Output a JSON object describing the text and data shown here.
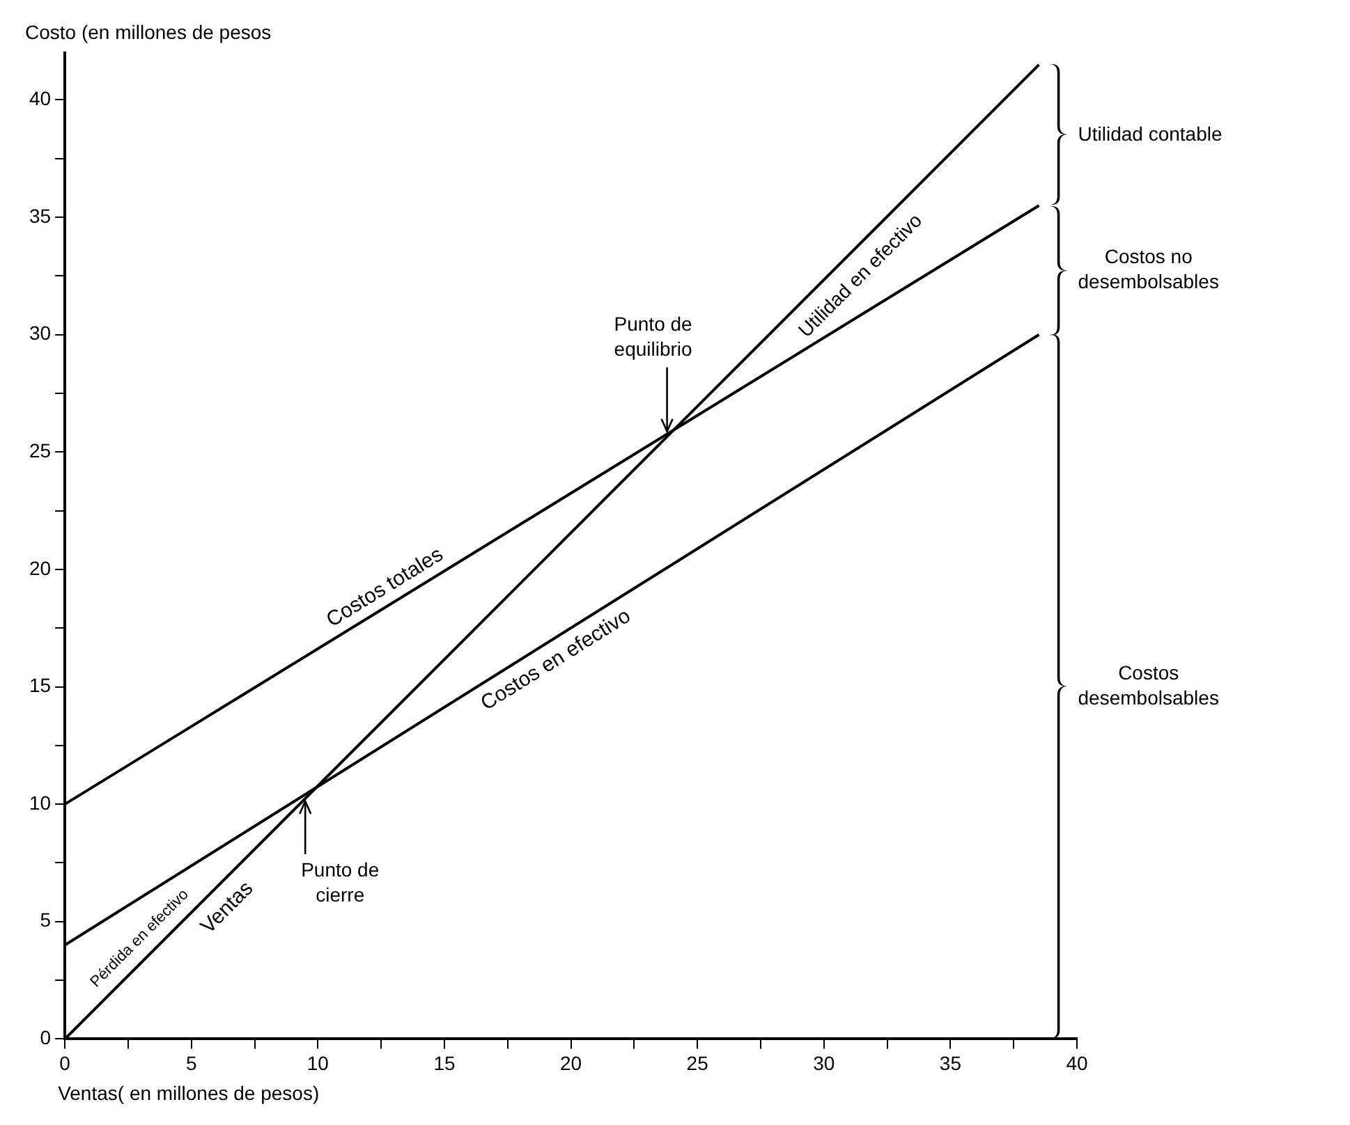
{
  "chart_data": {
    "type": "line",
    "xlabel": "Ventas( en millones de pesos)",
    "ylabel": "Costo (en millones de pesos",
    "x": [
      0,
      38.5
    ],
    "series": [
      {
        "name": "Ventas",
        "color": "#000000",
        "values": [
          0,
          41.5
        ]
      },
      {
        "name": "Costos totales",
        "color": "#000000",
        "values": [
          10,
          35.5
        ]
      },
      {
        "name": "Costos en efectivo",
        "color": "#000000",
        "values": [
          4,
          30
        ]
      }
    ],
    "xlim": [
      0,
      40
    ],
    "ylim": [
      0,
      42
    ],
    "xticks": [
      0,
      {
        "value": 2.5,
        "label": null
      },
      5,
      {
        "value": 7.5,
        "label": null
      },
      10,
      {
        "value": 12.5,
        "label": null
      },
      15,
      {
        "value": 17.5,
        "label": null
      },
      20,
      {
        "value": 22.5,
        "label": null
      },
      25,
      {
        "value": 27.5,
        "label": null
      },
      30,
      {
        "value": 32.5,
        "label": null
      },
      35,
      {
        "value": 37.5,
        "label": null
      },
      40
    ],
    "yticks": [
      0,
      {
        "value": 2.5,
        "label": null
      },
      5,
      {
        "value": 7.5,
        "label": null
      },
      10,
      {
        "value": 12.5,
        "label": null
      },
      15,
      {
        "value": 17.5,
        "label": null
      },
      20,
      {
        "value": 22.5,
        "label": null
      },
      25,
      {
        "value": 27.5,
        "label": null
      },
      30,
      {
        "value": 32.5,
        "label": null
      },
      35,
      {
        "value": 37.5,
        "label": null
      },
      40
    ],
    "annotations": [
      {
        "text": "Punto de equilibrio",
        "x": 23.8,
        "y": 25.7
      },
      {
        "text": "Punto de cierre",
        "x": 9.5,
        "y": 10.3
      },
      "Pérdida en efectivo",
      "Utilidad en efectivo",
      "Utilidad contable",
      "Costos no desembolsables",
      "Costos desembolsables"
    ],
    "grid": false,
    "legend": false,
    "marker": "none",
    "line_style": "solid"
  }
}
